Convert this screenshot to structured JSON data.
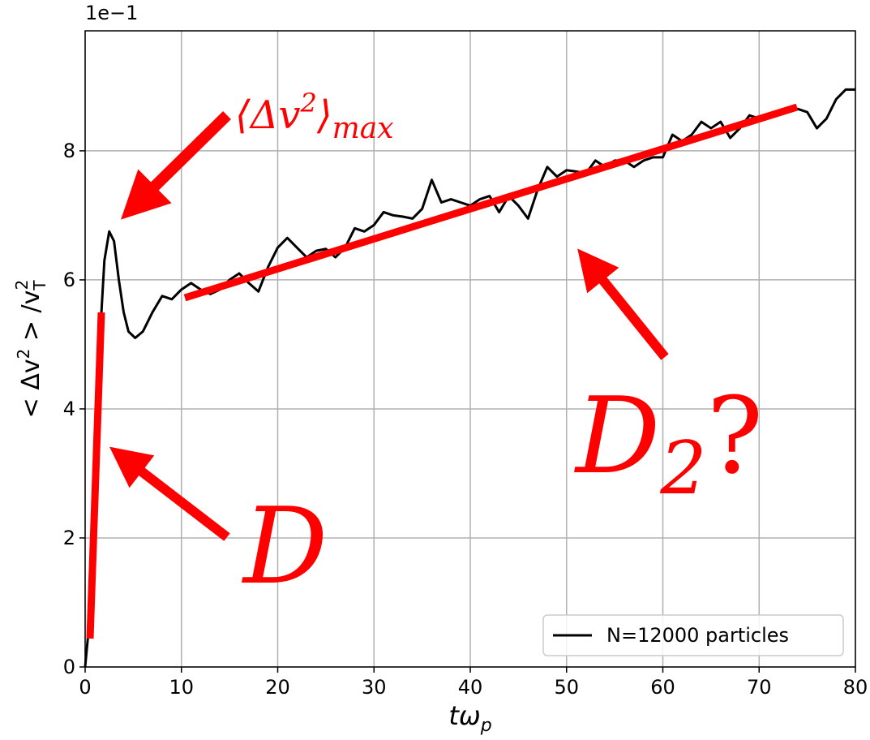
{
  "chart_data": {
    "type": "line",
    "y_offset_label": "1e−1",
    "xlabel": {
      "main": "tω",
      "sub": "p"
    },
    "ylabel": {
      "start": "< Δv",
      "sup1": "2",
      "mid": " > /v",
      "sub": "T",
      "sup2": "2"
    },
    "x": [
      0,
      0.5,
      1,
      1.5,
      2,
      2.5,
      3,
      3.5,
      4,
      4.5,
      5.2,
      6,
      7,
      8,
      9,
      10,
      11,
      12,
      13,
      14,
      15,
      16,
      17,
      18,
      19,
      20,
      21,
      22,
      23,
      24,
      25,
      26,
      27,
      28,
      29,
      30,
      31,
      32,
      33,
      34,
      35,
      36,
      37,
      38,
      39,
      40,
      41,
      42,
      43,
      44,
      45,
      46,
      47,
      48,
      49,
      50,
      51,
      52,
      53,
      54,
      55,
      56,
      57,
      58,
      59,
      60,
      61,
      62,
      63,
      64,
      65,
      66,
      67,
      68,
      69,
      70,
      71,
      72,
      73,
      74,
      75,
      76,
      77,
      78,
      79,
      80
    ],
    "series": [
      {
        "name": "N=12000 particles",
        "color": "#000000",
        "values": [
          0,
          0.8,
          2.8,
          5.0,
          6.3,
          6.75,
          6.6,
          6.0,
          5.5,
          5.2,
          5.1,
          5.2,
          5.5,
          5.75,
          5.7,
          5.85,
          5.95,
          5.85,
          5.78,
          5.85,
          6.0,
          6.1,
          5.95,
          5.82,
          6.2,
          6.5,
          6.65,
          6.5,
          6.35,
          6.45,
          6.48,
          6.35,
          6.5,
          6.8,
          6.75,
          6.85,
          7.05,
          7.0,
          6.98,
          6.95,
          7.1,
          7.55,
          7.2,
          7.25,
          7.2,
          7.15,
          7.25,
          7.3,
          7.05,
          7.3,
          7.15,
          6.95,
          7.4,
          7.75,
          7.6,
          7.7,
          7.68,
          7.65,
          7.85,
          7.75,
          7.85,
          7.85,
          7.75,
          7.85,
          7.9,
          7.9,
          8.25,
          8.15,
          8.25,
          8.45,
          8.35,
          8.45,
          8.2,
          8.35,
          8.55,
          8.5,
          8.55,
          8.6,
          8.65,
          8.65,
          8.6,
          8.35,
          8.5,
          8.8,
          8.95,
          8.95
        ]
      }
    ],
    "xlim": [
      0,
      80
    ],
    "ylim": [
      0,
      9.86
    ],
    "xticks": [
      0,
      10,
      20,
      30,
      40,
      50,
      60,
      70,
      80
    ],
    "yticks": [
      0,
      2,
      4,
      6,
      8
    ],
    "grid": true,
    "legend": "lower right",
    "annotations": {
      "max_label": {
        "open": "⟨Δv",
        "sup": "2",
        "close": "⟩",
        "sub": "max"
      },
      "d_label": "D",
      "d2_label": {
        "main": "D",
        "sub": "2",
        "tail": "?"
      }
    }
  }
}
